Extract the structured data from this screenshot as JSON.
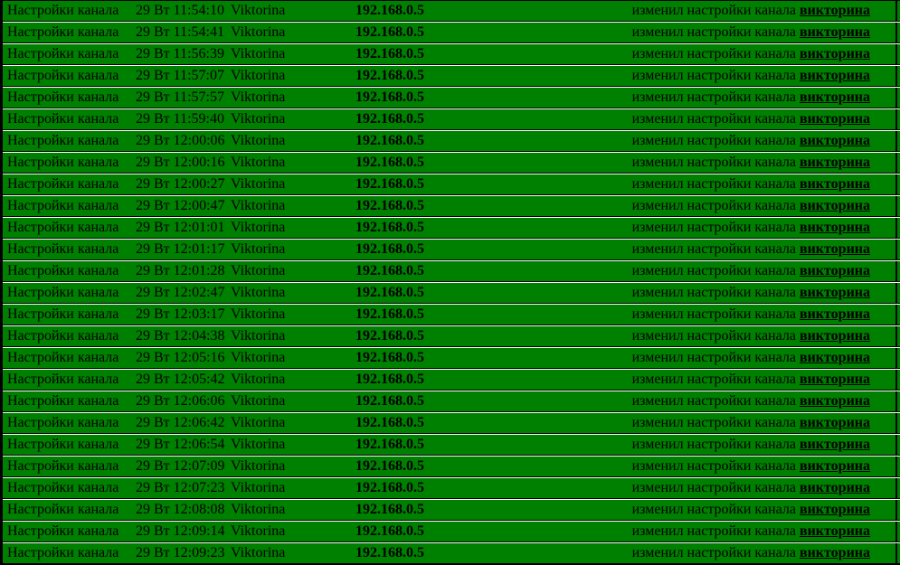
{
  "table": {
    "colors": {
      "row_bg": "#008000",
      "border": "#000000",
      "separator": "#ffffff",
      "text": "#000000"
    },
    "rows": [
      {
        "action": "Настройки канала",
        "datetime": "29 Вт 11:54:10",
        "user": "Viktorina",
        "ip": "192.168.0.5",
        "message": "изменил настройки канала",
        "channel_link": "викторина"
      },
      {
        "action": "Настройки канала",
        "datetime": "29 Вт 11:54:41",
        "user": "Viktorina",
        "ip": "192.168.0.5",
        "message": "изменил настройки канала",
        "channel_link": "викторина"
      },
      {
        "action": "Настройки канала",
        "datetime": "29 Вт 11:56:39",
        "user": "Viktorina",
        "ip": "192.168.0.5",
        "message": "изменил настройки канала",
        "channel_link": "викторина"
      },
      {
        "action": "Настройки канала",
        "datetime": "29 Вт 11:57:07",
        "user": "Viktorina",
        "ip": "192.168.0.5",
        "message": "изменил настройки канала",
        "channel_link": "викторина"
      },
      {
        "action": "Настройки канала",
        "datetime": "29 Вт 11:57:57",
        "user": "Viktorina",
        "ip": "192.168.0.5",
        "message": "изменил настройки канала",
        "channel_link": "викторина"
      },
      {
        "action": "Настройки канала",
        "datetime": "29 Вт 11:59:40",
        "user": "Viktorina",
        "ip": "192.168.0.5",
        "message": "изменил настройки канала",
        "channel_link": "викторина"
      },
      {
        "action": "Настройки канала",
        "datetime": "29 Вт 12:00:06",
        "user": "Viktorina",
        "ip": "192.168.0.5",
        "message": "изменил настройки канала",
        "channel_link": "викторина"
      },
      {
        "action": "Настройки канала",
        "datetime": "29 Вт 12:00:16",
        "user": "Viktorina",
        "ip": "192.168.0.5",
        "message": "изменил настройки канала",
        "channel_link": "викторина"
      },
      {
        "action": "Настройки канала",
        "datetime": "29 Вт 12:00:27",
        "user": "Viktorina",
        "ip": "192.168.0.5",
        "message": "изменил настройки канала",
        "channel_link": "викторина"
      },
      {
        "action": "Настройки канала",
        "datetime": "29 Вт 12:00:47",
        "user": "Viktorina",
        "ip": "192.168.0.5",
        "message": "изменил настройки канала",
        "channel_link": "викторина"
      },
      {
        "action": "Настройки канала",
        "datetime": "29 Вт 12:01:01",
        "user": "Viktorina",
        "ip": "192.168.0.5",
        "message": "изменил настройки канала",
        "channel_link": "викторина"
      },
      {
        "action": "Настройки канала",
        "datetime": "29 Вт 12:01:17",
        "user": "Viktorina",
        "ip": "192.168.0.5",
        "message": "изменил настройки канала",
        "channel_link": "викторина"
      },
      {
        "action": "Настройки канала",
        "datetime": "29 Вт 12:01:28",
        "user": "Viktorina",
        "ip": "192.168.0.5",
        "message": "изменил настройки канала",
        "channel_link": "викторина"
      },
      {
        "action": "Настройки канала",
        "datetime": "29 Вт 12:02:47",
        "user": "Viktorina",
        "ip": "192.168.0.5",
        "message": "изменил настройки канала",
        "channel_link": "викторина"
      },
      {
        "action": "Настройки канала",
        "datetime": "29 Вт 12:03:17",
        "user": "Viktorina",
        "ip": "192.168.0.5",
        "message": "изменил настройки канала",
        "channel_link": "викторина"
      },
      {
        "action": "Настройки канала",
        "datetime": "29 Вт 12:04:38",
        "user": "Viktorina",
        "ip": "192.168.0.5",
        "message": "изменил настройки канала",
        "channel_link": "викторина"
      },
      {
        "action": "Настройки канала",
        "datetime": "29 Вт 12:05:16",
        "user": "Viktorina",
        "ip": "192.168.0.5",
        "message": "изменил настройки канала",
        "channel_link": "викторина"
      },
      {
        "action": "Настройки канала",
        "datetime": "29 Вт 12:05:42",
        "user": "Viktorina",
        "ip": "192.168.0.5",
        "message": "изменил настройки канала",
        "channel_link": "викторина"
      },
      {
        "action": "Настройки канала",
        "datetime": "29 Вт 12:06:06",
        "user": "Viktorina",
        "ip": "192.168.0.5",
        "message": "изменил настройки канала",
        "channel_link": "викторина"
      },
      {
        "action": "Настройки канала",
        "datetime": "29 Вт 12:06:42",
        "user": "Viktorina",
        "ip": "192.168.0.5",
        "message": "изменил настройки канала",
        "channel_link": "викторина"
      },
      {
        "action": "Настройки канала",
        "datetime": "29 Вт 12:06:54",
        "user": "Viktorina",
        "ip": "192.168.0.5",
        "message": "изменил настройки канала",
        "channel_link": "викторина"
      },
      {
        "action": "Настройки канала",
        "datetime": "29 Вт 12:07:09",
        "user": "Viktorina",
        "ip": "192.168.0.5",
        "message": "изменил настройки канала",
        "channel_link": "викторина"
      },
      {
        "action": "Настройки канала",
        "datetime": "29 Вт 12:07:23",
        "user": "Viktorina",
        "ip": "192.168.0.5",
        "message": "изменил настройки канала",
        "channel_link": "викторина"
      },
      {
        "action": "Настройки канала",
        "datetime": "29 Вт 12:08:08",
        "user": "Viktorina",
        "ip": "192.168.0.5",
        "message": "изменил настройки канала",
        "channel_link": "викторина"
      },
      {
        "action": "Настройки канала",
        "datetime": "29 Вт 12:09:14",
        "user": "Viktorina",
        "ip": "192.168.0.5",
        "message": "изменил настройки канала",
        "channel_link": "викторина"
      },
      {
        "action": "Настройки канала",
        "datetime": "29 Вт 12:09:23",
        "user": "Viktorina",
        "ip": "192.168.0.5",
        "message": "изменил настройки канала",
        "channel_link": "викторина"
      }
    ]
  }
}
